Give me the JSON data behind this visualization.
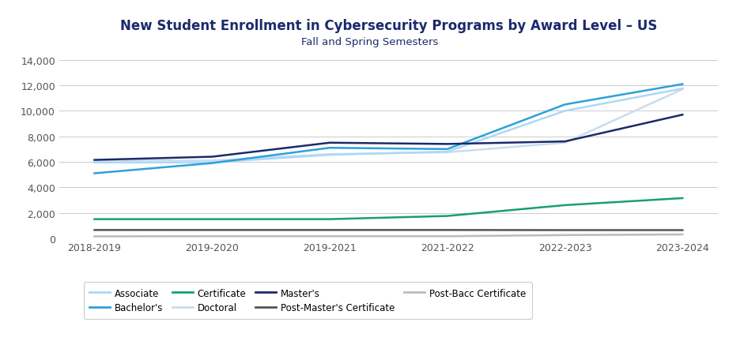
{
  "title": "New Student Enrollment in Cybersecurity Programs by Award Level – US",
  "subtitle": "Fall and Spring Semesters",
  "x_labels": [
    "2018-2019",
    "2019-2020",
    "2019-2021",
    "2021-2022",
    "2022-2023",
    "2023-2024"
  ],
  "series": {
    "Associate": {
      "values": [
        5950,
        5950,
        6550,
        6800,
        10000,
        11750
      ],
      "color": "#add8f5",
      "linewidth": 1.8,
      "zorder": 3
    },
    "Bachelor's": {
      "values": [
        5100,
        5900,
        7100,
        7000,
        10500,
        12100
      ],
      "color": "#2da0dc",
      "linewidth": 1.8,
      "zorder": 4
    },
    "Certificate": {
      "values": [
        1500,
        1500,
        1500,
        1750,
        2600,
        3150
      ],
      "color": "#1a9c7a",
      "linewidth": 1.8,
      "zorder": 4
    },
    "Doctoral": {
      "values": [
        6100,
        6100,
        6600,
        6750,
        7500,
        11700
      ],
      "color": "#c8ddf0",
      "linewidth": 1.8,
      "zorder": 2
    },
    "Master's": {
      "values": [
        6150,
        6400,
        7500,
        7400,
        7600,
        9700
      ],
      "color": "#1b2a6b",
      "linewidth": 1.8,
      "zorder": 5
    },
    "Post-Master's Certificate": {
      "values": [
        650,
        650,
        650,
        650,
        640,
        640
      ],
      "color": "#555555",
      "linewidth": 1.8,
      "zorder": 2
    },
    "Post-Bacc Certificate": {
      "values": [
        150,
        160,
        160,
        160,
        250,
        300
      ],
      "color": "#bbbbbb",
      "linewidth": 1.8,
      "zorder": 2
    }
  },
  "ylim": [
    0,
    14000
  ],
  "yticks": [
    0,
    2000,
    4000,
    6000,
    8000,
    10000,
    12000,
    14000
  ],
  "background_color": "#ffffff",
  "grid_color": "#cccccc",
  "title_color": "#1b2a6b",
  "subtitle_color": "#1b2a6b",
  "tick_color": "#555555",
  "legend_order": [
    "Associate",
    "Bachelor's",
    "Certificate",
    "Doctoral",
    "Master's",
    "Post-Master's Certificate",
    "Post-Bacc Certificate"
  ]
}
